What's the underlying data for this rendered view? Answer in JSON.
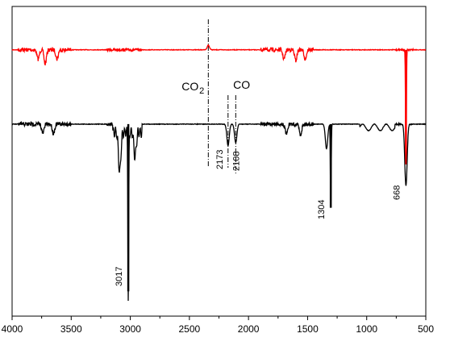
{
  "chart_data": {
    "type": "line",
    "title": "",
    "xlabel": "",
    "ylabel": "",
    "xlim": [
      4000,
      500
    ],
    "ylim": [
      0,
      1
    ],
    "x_ticks": [
      4000,
      3500,
      3000,
      2500,
      2000,
      1500,
      1000,
      500
    ],
    "x_tick_labels": [
      "4000",
      "3500",
      "3000",
      "2500",
      "2000",
      "1500",
      "1000",
      "500"
    ],
    "grid": false,
    "legend": "none",
    "series": [
      {
        "color": "#ff0000",
        "baseline": 0.86,
        "peaks": [
          {
            "x": 3780,
            "depth": 0.03
          },
          {
            "x": 3720,
            "depth": 0.045
          },
          {
            "x": 3620,
            "depth": 0.03
          },
          {
            "x": 2340,
            "depth": -0.015
          },
          {
            "x": 1700,
            "depth": 0.03
          },
          {
            "x": 1600,
            "depth": 0.035
          },
          {
            "x": 1520,
            "depth": 0.03
          },
          {
            "x": 668,
            "depth": 0.37
          }
        ]
      },
      {
        "color": "#000000",
        "baseline": 0.62,
        "peaks": [
          {
            "x": 3740,
            "depth": 0.03
          },
          {
            "x": 3650,
            "depth": 0.03
          },
          {
            "x": 3090,
            "depth": 0.13
          },
          {
            "x": 3017,
            "depth": 0.54
          },
          {
            "x": 2960,
            "depth": 0.08
          },
          {
            "x": 2173,
            "depth": 0.07
          },
          {
            "x": 2108,
            "depth": 0.06
          },
          {
            "x": 1680,
            "depth": 0.03
          },
          {
            "x": 1560,
            "depth": 0.035
          },
          {
            "x": 1340,
            "depth": 0.08
          },
          {
            "x": 1304,
            "depth": 0.27
          },
          {
            "x": 668,
            "depth": 0.2
          }
        ]
      }
    ],
    "annotations": [
      {
        "text": "3017",
        "x": 3017
      },
      {
        "text": "2173",
        "x": 2173
      },
      {
        "text": "2108",
        "x": 2108
      },
      {
        "text": "1304",
        "x": 1304
      },
      {
        "text": "668",
        "x": 668
      },
      {
        "text": "CO",
        "sub": "2",
        "x": 2340
      },
      {
        "text": "CO",
        "x": 2140
      }
    ]
  }
}
